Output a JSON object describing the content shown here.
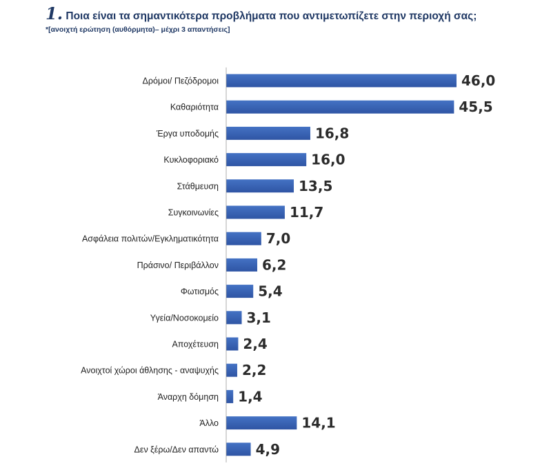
{
  "header": {
    "number": "1.",
    "title": "Ποια είναι τα σημαντικότερα προβλήματα που αντιμετωπίζετε στην περιοχή σας;",
    "note": "*[ανοιχτή ερώτηση (αυθόρμητα)– μέχρι 3 απαντήσεις]"
  },
  "colors": {
    "bar": "#4472c4",
    "bar_dark": "#2f55a4",
    "axis": "#999999"
  },
  "chart_data": {
    "type": "bar",
    "orientation": "horizontal",
    "categories": [
      "Δρόμοι/ Πεζόδρομοι",
      "Καθαριότητα",
      "Έργα υποδομής",
      "Κυκλοφοριακό",
      "Στάθμευση",
      "Συγκοινωνίες",
      "Ασφάλεια πολιτών/Εγκληματικότητα",
      "Πράσινο/ Περιβάλλον",
      "Φωτισμός",
      "Υγεία/Νοσοκομείο",
      "Αποχέτευση",
      "Ανοιχτοί χώροι άθλησης - αναψυχής",
      "Άναρχη δόμηση",
      "Άλλο",
      "Δεν ξέρω/Δεν απαντώ"
    ],
    "values": [
      46.0,
      45.5,
      16.8,
      16.0,
      13.5,
      11.7,
      7.0,
      6.2,
      5.4,
      3.1,
      2.4,
      2.2,
      1.4,
      14.1,
      4.9
    ],
    "value_labels": [
      "46,0",
      "45,5",
      "16,8",
      "16,0",
      "13,5",
      "11,7",
      "7,0",
      "6,2",
      "5,4",
      "3,1",
      "2,4",
      "2,2",
      "1,4",
      "14,1",
      "4,9"
    ],
    "title": "",
    "xlabel": "",
    "ylabel": "",
    "xlim": [
      0,
      46
    ],
    "grid": false,
    "legend": "none"
  }
}
